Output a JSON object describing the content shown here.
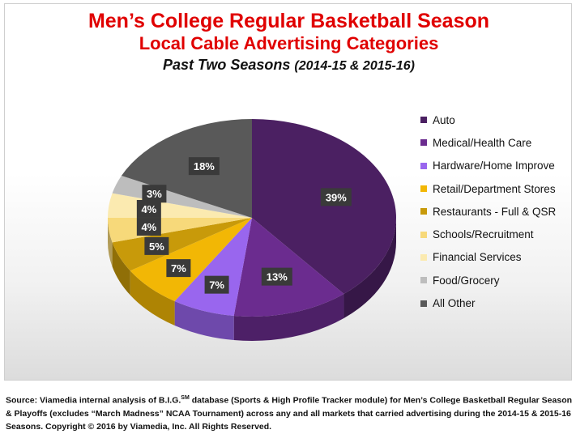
{
  "chart_data": {
    "type": "pie",
    "title": "Men’s College Regular Basketball Season",
    "subtitle": "Local Cable Advertising Categories",
    "subtitle2_main": "Past Two Seasons ",
    "subtitle2_paren": "(2014-15 & 2015-16)",
    "legend_position": "right",
    "slices": [
      {
        "label": "Auto",
        "value": 39,
        "display": "39%",
        "color": "#4b2062"
      },
      {
        "label": "Medical/Health Care",
        "value": 13,
        "display": "13%",
        "color": "#6b2c8f"
      },
      {
        "label": "Hardware/Home Improve",
        "value": 7,
        "display": "7%",
        "color": "#9966ee"
      },
      {
        "label": "Retail/Department Stores",
        "value": 7,
        "display": "7%",
        "color": "#f2b705"
      },
      {
        "label": "Restaurants - Full & QSR",
        "value": 5,
        "display": "5%",
        "color": "#c89a0a"
      },
      {
        "label": "Schools/Recruitment",
        "value": 4,
        "display": "4%",
        "color": "#f7d97a"
      },
      {
        "label": "Financial Services",
        "value": 4,
        "display": "4%",
        "color": "#fbeab0"
      },
      {
        "label": "Food/Grocery",
        "value": 3,
        "display": "3%",
        "color": "#bdbdbd"
      },
      {
        "label": "All Other",
        "value": 18,
        "display": "18%",
        "color": "#595959"
      }
    ]
  },
  "source": {
    "pre": "Source: Viamedia internal analysis of B.I.G.",
    "sup": "SM",
    "post": "  database (Sports & High Profile Tracker module) for Men’s College Basketball Regular Season & Playoffs (excludes “March Madness” NCAA Tournament) across any and all markets that carried advertising during the 2014-15 & 2015-16 Seasons. Copyright © 2016 by Viamedia, Inc. All Rights Reserved."
  }
}
